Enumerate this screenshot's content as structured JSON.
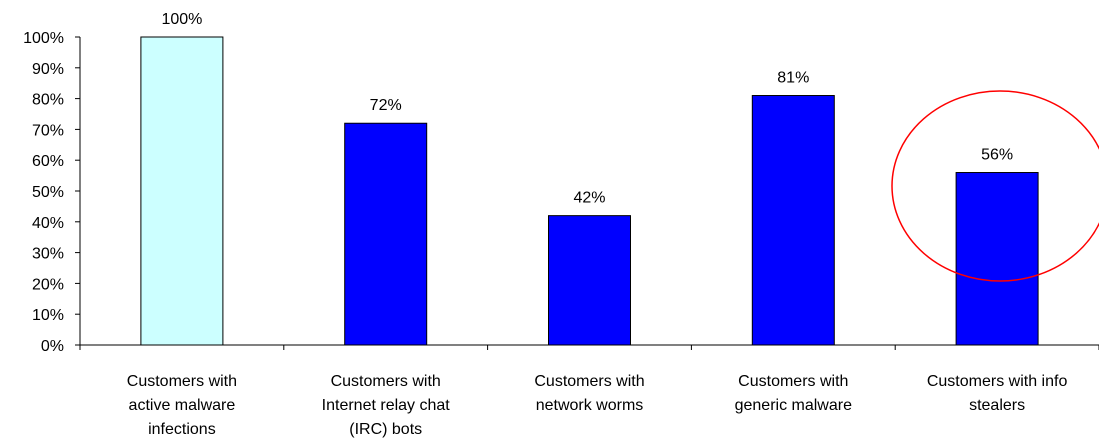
{
  "chart_data": {
    "type": "bar",
    "categories": [
      [
        "Customers with",
        "active malware",
        "infections"
      ],
      [
        "Customers with",
        "Internet relay chat",
        "(IRC) bots"
      ],
      [
        "Customers with",
        "network worms"
      ],
      [
        "Customers with",
        "generic malware"
      ],
      [
        "Customers with info",
        "stealers"
      ]
    ],
    "values": [
      100,
      72,
      42,
      81,
      56
    ],
    "data_labels": [
      "100%",
      "72%",
      "42%",
      "81%",
      "56%"
    ],
    "ylim": [
      0,
      100
    ],
    "y_ticks": [
      "0%",
      "10%",
      "20%",
      "30%",
      "40%",
      "50%",
      "60%",
      "70%",
      "80%",
      "90%",
      "100%"
    ],
    "grid": false,
    "colors": {
      "bars": [
        "#ccffff",
        "#0000ff",
        "#0000ff",
        "#0000ff",
        "#0000ff"
      ],
      "bar_stroke": "#000000",
      "highlight_circle": "#ff0000"
    },
    "highlighted_category_index": 4
  }
}
